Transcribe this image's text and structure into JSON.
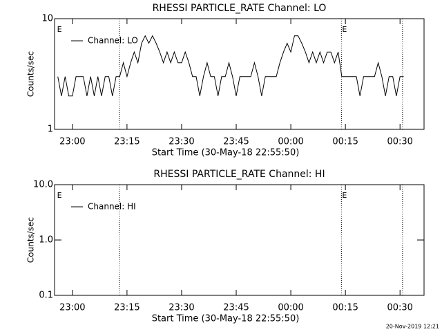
{
  "chart_data": [
    {
      "type": "line",
      "title": "RHESSI PARTICLE_RATE Channel: LO",
      "xlabel": "Start Time (30-May-18 22:55:50)",
      "ylabel": "Counts/sec",
      "log_y": true,
      "ylim": [
        1,
        10
      ],
      "yticks": [
        10,
        1
      ],
      "xlim": [
        1375.1,
        1476.6
      ],
      "xticks": [
        {
          "value": 1380,
          "label": "23:00"
        },
        {
          "value": 1395,
          "label": "23:15"
        },
        {
          "value": 1410,
          "label": "23:30"
        },
        {
          "value": 1425,
          "label": "23:45"
        },
        {
          "value": 1440,
          "label": "00:00"
        },
        {
          "value": 1455,
          "label": "00:15"
        },
        {
          "value": 1470,
          "label": "00:30"
        }
      ],
      "vlines": [
        1392.9,
        1453.9,
        1470.7
      ],
      "annotations": [
        {
          "x": 1375.6,
          "text": "E"
        },
        {
          "x": 1453.9,
          "text": "E"
        }
      ],
      "legend": "upper left",
      "x": [
        1376,
        1377,
        1378,
        1379,
        1380,
        1381,
        1382,
        1383,
        1384,
        1385,
        1386,
        1387,
        1388,
        1389,
        1390,
        1391,
        1392,
        1393,
        1394,
        1395,
        1396,
        1397,
        1398,
        1399,
        1400,
        1401,
        1402,
        1403,
        1404,
        1405,
        1406,
        1407,
        1408,
        1409,
        1410,
        1411,
        1412,
        1413,
        1414,
        1415,
        1416,
        1417,
        1418,
        1419,
        1420,
        1421,
        1422,
        1423,
        1424,
        1425,
        1426,
        1427,
        1428,
        1429,
        1430,
        1431,
        1432,
        1433,
        1434,
        1435,
        1436,
        1437,
        1438,
        1439,
        1440,
        1441,
        1442,
        1443,
        1444,
        1445,
        1446,
        1447,
        1448,
        1449,
        1450,
        1451,
        1452,
        1453,
        1454,
        1455,
        1456,
        1457,
        1458,
        1459,
        1460,
        1461,
        1462,
        1463,
        1464,
        1465,
        1466,
        1467,
        1468,
        1469,
        1470,
        1471
      ],
      "series": [
        {
          "name": "Channel: LO",
          "color": "#000000",
          "values": [
            3,
            2,
            3,
            2,
            2,
            3,
            3,
            3,
            2,
            3,
            2,
            3,
            2,
            3,
            3,
            2,
            3,
            3,
            4,
            3,
            4,
            5,
            4,
            6,
            7,
            6,
            7,
            6,
            5,
            4,
            5,
            4,
            5,
            4,
            4,
            5,
            4,
            3,
            3,
            2,
            3,
            4,
            3,
            3,
            2,
            3,
            3,
            4,
            3,
            2,
            3,
            3,
            3,
            3,
            4,
            3,
            2,
            3,
            3,
            3,
            3,
            4,
            5,
            6,
            5,
            7,
            7,
            6,
            5,
            4,
            5,
            4,
            5,
            4,
            5,
            5,
            4,
            5,
            3,
            3,
            3,
            3,
            3,
            2,
            3,
            3,
            3,
            3,
            4,
            3,
            2,
            3,
            3,
            2,
            3,
            3
          ]
        }
      ]
    },
    {
      "type": "line",
      "title": "RHESSI PARTICLE_RATE Channel: HI",
      "xlabel": "Start Time (30-May-18 22:55:50)",
      "ylabel": "Counts/sec",
      "log_y": true,
      "ylim": [
        0.1,
        10
      ],
      "yticks": [
        {
          "value": 10,
          "label": "10.0"
        },
        {
          "value": 1,
          "label": "1.0"
        },
        0.1
      ],
      "xlim": [
        1375.1,
        1476.6
      ],
      "xticks": [
        {
          "value": 1380,
          "label": "23:00"
        },
        {
          "value": 1395,
          "label": "23:15"
        },
        {
          "value": 1410,
          "label": "23:30"
        },
        {
          "value": 1425,
          "label": "23:45"
        },
        {
          "value": 1440,
          "label": "00:00"
        },
        {
          "value": 1455,
          "label": "00:15"
        },
        {
          "value": 1470,
          "label": "00:30"
        }
      ],
      "vlines": [
        1392.9,
        1453.9,
        1470.7
      ],
      "annotations": [
        {
          "x": 1375.6,
          "text": "E"
        },
        {
          "x": 1453.9,
          "text": "E"
        }
      ],
      "legend": "upper left",
      "x": [],
      "series": [
        {
          "name": "Channel: HI",
          "color": "#000000",
          "values": []
        }
      ]
    }
  ],
  "footer": "20-Nov-2019 12:21"
}
